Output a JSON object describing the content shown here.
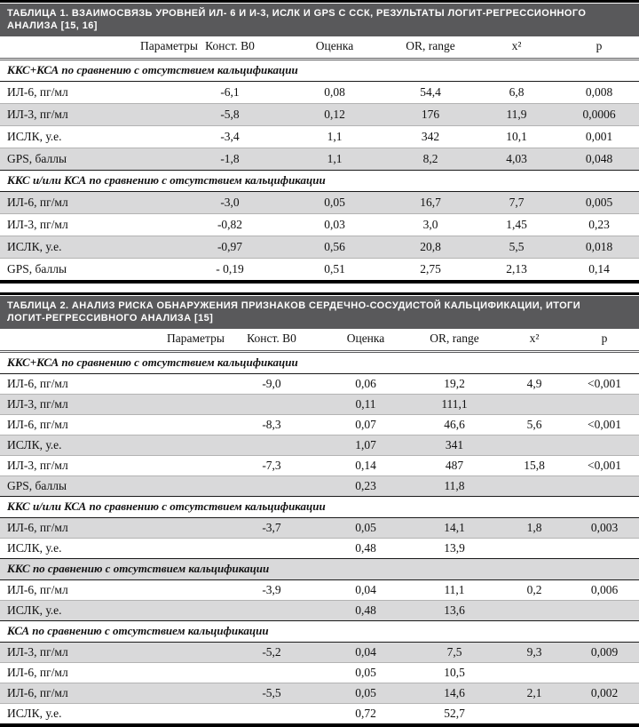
{
  "colors": {
    "title_bar_bg": "#59595b",
    "title_bar_text": "#ffffff",
    "shaded_row_bg": "#d9d9da",
    "rule_black": "#000000",
    "rule_light": "#b3b3b3"
  },
  "tables": [
    {
      "title": "ТАБЛИЦА 1. ВЗАИМОСВЯЗЬ УРОВНЕЙ ИЛ- 6 И И-3, ИСЛК И GPS С ССК, РЕЗУЛЬТАТЫ ЛОГИТ-РЕГРЕССИОННОГО АНАЛИЗА [15, 16]",
      "columns": [
        "Параметры",
        "Конст. В0",
        "Оценка",
        "OR, range",
        "х²",
        "р"
      ],
      "rows": [
        {
          "type": "section",
          "shaded": false,
          "label": "ККС+КСА по сравнению с отсутствием кальцификации"
        },
        {
          "type": "data",
          "shaded": false,
          "cells": [
            "ИЛ-6, пг/мл",
            "-6,1",
            "0,08",
            "54,4",
            "6,8",
            "0,008"
          ]
        },
        {
          "type": "data",
          "shaded": true,
          "cells": [
            "ИЛ-3, пг/мл",
            "-5,8",
            "0,12",
            "176",
            "11,9",
            "0,0006"
          ]
        },
        {
          "type": "data",
          "shaded": false,
          "cells": [
            "ИСЛК, у.е.",
            "-3,4",
            "1,1",
            "342",
            "10,1",
            "0,001"
          ]
        },
        {
          "type": "data",
          "shaded": true,
          "cells": [
            "GPS, баллы",
            "-1,8",
            "1,1",
            "8,2",
            "4,03",
            "0,048"
          ]
        },
        {
          "type": "section",
          "shaded": false,
          "label": "ККС и/или КСА по сравнению с отсутствием кальцификации"
        },
        {
          "type": "data",
          "shaded": true,
          "cells": [
            "ИЛ-6, пг/мл",
            "-3,0",
            "0,05",
            "16,7",
            "7,7",
            "0,005"
          ]
        },
        {
          "type": "data",
          "shaded": false,
          "cells": [
            "ИЛ-3, пг/мл",
            "-0,82",
            "0,03",
            "3,0",
            "1,45",
            "0,23"
          ]
        },
        {
          "type": "data",
          "shaded": true,
          "cells": [
            "ИСЛК, у.е.",
            "-0,97",
            "0,56",
            "20,8",
            "5,5",
            "0,018"
          ]
        },
        {
          "type": "data",
          "shaded": false,
          "cells": [
            "GPS, баллы",
            "- 0,19",
            "0,51",
            "2,75",
            "2,13",
            "0,14"
          ]
        }
      ]
    },
    {
      "title": "ТАБЛИЦА 2. АНАЛИЗ РИСКА ОБНАРУЖЕНИЯ ПРИЗНАКОВ СЕРДЕЧНО-СОСУДИСТОЙ КАЛЬЦИФИКАЦИИ, ИТОГИ ЛОГИТ-РЕГРЕССИВНОГО АНАЛИЗА [15]",
      "columns": [
        "Параметры",
        "Конст. В0",
        "Оценка",
        "OR, range",
        "х²",
        "р"
      ],
      "rows": [
        {
          "type": "section",
          "shaded": false,
          "label": "ККС+КСА по сравнению с отсутствием кальцификации"
        },
        {
          "type": "data",
          "shaded": false,
          "cells": [
            "ИЛ-6, пг/мл",
            "-9,0",
            "0,06",
            "19,2",
            "4,9",
            "<0,001"
          ]
        },
        {
          "type": "data",
          "shaded": true,
          "cells": [
            "ИЛ-3, пг/мл",
            "",
            "0,11",
            "111,1",
            "",
            ""
          ]
        },
        {
          "type": "data",
          "shaded": false,
          "cells": [
            "ИЛ-6, пг/мл",
            "-8,3",
            "0,07",
            "46,6",
            "5,6",
            "<0,001"
          ]
        },
        {
          "type": "data",
          "shaded": true,
          "cells": [
            "ИСЛК, у.е.",
            "",
            "1,07",
            "341",
            "",
            ""
          ]
        },
        {
          "type": "data",
          "shaded": false,
          "cells": [
            "ИЛ-3, пг/мл",
            "-7,3",
            "0,14",
            "487",
            "15,8",
            "<0,001"
          ]
        },
        {
          "type": "data",
          "shaded": true,
          "cells": [
            "GPS, баллы",
            "",
            "0,23",
            "11,8",
            "",
            ""
          ]
        },
        {
          "type": "section",
          "shaded": false,
          "label": "ККС и/или КСА по сравнению с отсутствием кальцификации"
        },
        {
          "type": "data",
          "shaded": true,
          "cells": [
            "ИЛ-6, пг/мл",
            "-3,7",
            "0,05",
            "14,1",
            "1,8",
            "0,003"
          ]
        },
        {
          "type": "data",
          "shaded": false,
          "cells": [
            "ИСЛК, у.е.",
            "",
            "0,48",
            "13,9",
            "",
            ""
          ]
        },
        {
          "type": "section",
          "shaded": true,
          "label": "ККС по сравнению с отсутствием кальцификации"
        },
        {
          "type": "data",
          "shaded": false,
          "cells": [
            "ИЛ-6, пг/мл",
            "-3,9",
            "0,04",
            "11,1",
            "0,2",
            "0,006"
          ]
        },
        {
          "type": "data",
          "shaded": true,
          "cells": [
            "ИСЛК, у.е.",
            "",
            "0,48",
            "13,6",
            "",
            ""
          ]
        },
        {
          "type": "section",
          "shaded": false,
          "label": "КСА по сравнению с отсутствием кальцификации"
        },
        {
          "type": "data",
          "shaded": true,
          "cells": [
            "ИЛ-3, пг/мл",
            "-5,2",
            "0,04",
            "7,5",
            "9,3",
            "0,009"
          ]
        },
        {
          "type": "data",
          "shaded": false,
          "cells": [
            "ИЛ-6, пг/мл",
            "",
            "0,05",
            "10,5",
            "",
            ""
          ]
        },
        {
          "type": "data",
          "shaded": true,
          "cells": [
            "ИЛ-6, пг/мл",
            "-5,5",
            "0,05",
            "14,6",
            "2,1",
            "0,002"
          ]
        },
        {
          "type": "data",
          "shaded": false,
          "cells": [
            "ИСЛК, у.е.",
            "",
            "0,72",
            "52,7",
            "",
            ""
          ]
        }
      ]
    }
  ]
}
